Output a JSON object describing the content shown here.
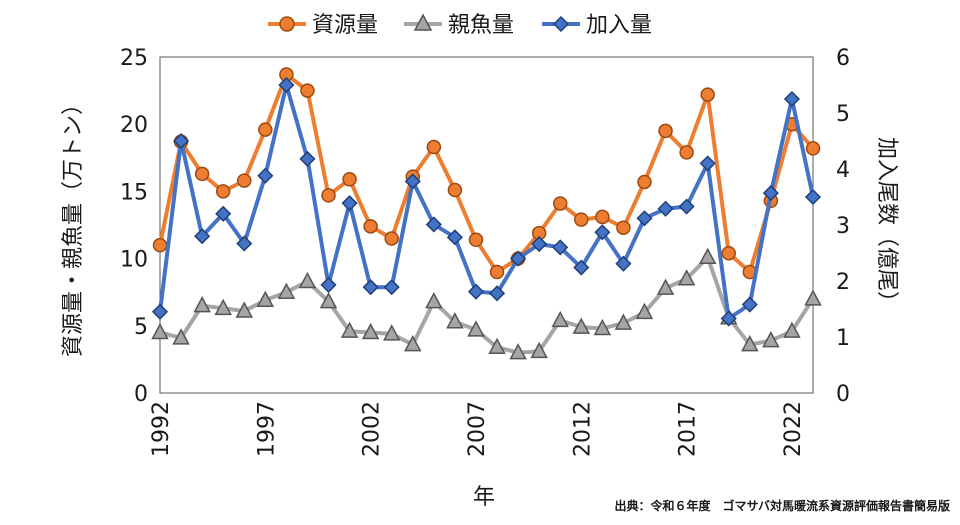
{
  "chart_data": {
    "type": "line",
    "x_years": [
      1992,
      1993,
      1994,
      1995,
      1996,
      1997,
      1998,
      1999,
      2000,
      2001,
      2002,
      2003,
      2004,
      2005,
      2006,
      2007,
      2008,
      2009,
      2010,
      2011,
      2012,
      2013,
      2014,
      2015,
      2016,
      2017,
      2018,
      2019,
      2020,
      2021,
      2022,
      2023
    ],
    "x_ticks": [
      "1992",
      "1997",
      "2002",
      "2007",
      "2012",
      "2017",
      "2022"
    ],
    "xlabel": "年",
    "ylabel_left": "資源量・親魚量（万トン）",
    "ylabel_right": "加入尾数（億尾）",
    "ylim_left": [
      0,
      25
    ],
    "ylim_right": [
      0,
      6
    ],
    "y_ticks_left": [
      "0",
      "5",
      "10",
      "15",
      "20",
      "25"
    ],
    "y_ticks_right": [
      "0",
      "1",
      "2",
      "3",
      "4",
      "5",
      "6"
    ],
    "series": [
      {
        "name": "資源量",
        "axis": "left",
        "color": "#ed7d31",
        "marker": "circle",
        "values": [
          11.0,
          18.7,
          16.3,
          15.0,
          15.8,
          19.6,
          23.7,
          22.5,
          14.7,
          15.9,
          12.4,
          11.5,
          16.1,
          18.3,
          15.1,
          11.4,
          9.0,
          10.0,
          11.9,
          14.1,
          12.9,
          13.1,
          12.3,
          15.7,
          19.5,
          17.9,
          22.2,
          10.4,
          9.0,
          14.3,
          20.0,
          18.2
        ]
      },
      {
        "name": "親魚量",
        "axis": "left",
        "color": "#a5a5a5",
        "marker": "triangle",
        "values": [
          4.5,
          4.1,
          6.5,
          6.3,
          6.1,
          6.9,
          7.5,
          8.3,
          6.8,
          4.6,
          4.5,
          4.4,
          3.6,
          6.8,
          5.3,
          4.7,
          3.4,
          3.0,
          3.1,
          5.4,
          4.9,
          4.8,
          5.2,
          6.0,
          7.8,
          8.5,
          10.1,
          5.6,
          3.6,
          3.9,
          4.6,
          7.0
        ]
      },
      {
        "name": "加入量",
        "axis": "right",
        "color": "#4472c4",
        "marker": "diamond",
        "values": [
          1.45,
          4.5,
          2.8,
          3.2,
          2.67,
          3.88,
          5.5,
          4.18,
          1.93,
          3.39,
          1.89,
          1.89,
          3.78,
          3.01,
          2.78,
          1.81,
          1.78,
          2.4,
          2.66,
          2.6,
          2.24,
          2.87,
          2.31,
          3.12,
          3.29,
          3.33,
          4.1,
          1.33,
          1.58,
          3.57,
          5.25,
          3.5
        ]
      }
    ]
  },
  "legend": [
    {
      "label": "資源量"
    },
    {
      "label": "親魚量"
    },
    {
      "label": "加入量"
    }
  ],
  "source_note": "出典：令和６年度　ゴマサバ対馬暖流系資源評価報告書簡易版"
}
